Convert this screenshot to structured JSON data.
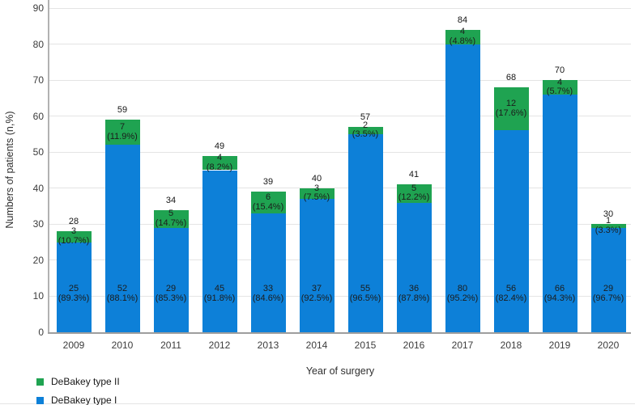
{
  "chart_data": {
    "type": "bar",
    "stacked": true,
    "title": "",
    "xlabel": "Year of surgery",
    "ylabel": "Numbers of patients (n,%)",
    "ylim": [
      0,
      90
    ],
    "ytick_step": 10,
    "yticks": [
      0,
      10,
      20,
      30,
      40,
      50,
      60,
      70,
      80,
      90
    ],
    "grid": true,
    "legend_position": "bottom-left",
    "categories": [
      "2009",
      "2010",
      "2011",
      "2012",
      "2013",
      "2014",
      "2015",
      "2016",
      "2017",
      "2018",
      "2019",
      "2020"
    ],
    "series": [
      {
        "name": "DeBakey type I",
        "color": "#0d80d8",
        "values": [
          25,
          52,
          29,
          45,
          33,
          37,
          55,
          36,
          80,
          56,
          66,
          29
        ],
        "pct_labels": [
          "(89.3%)",
          "(88.1%)",
          "(85.3%)",
          "(91.8%)",
          "(84.6%)",
          "(92.5%)",
          "(96.5%)",
          "(87.8%)",
          "(95.2%)",
          "(82.4%)",
          "(94.3%)",
          "(96.7%)"
        ]
      },
      {
        "name": "DeBakey type II",
        "color": "#1fa351",
        "values": [
          3,
          7,
          5,
          4,
          6,
          3,
          2,
          5,
          4,
          12,
          4,
          1
        ],
        "pct_labels": [
          "(10.7%)",
          "(11.9%)",
          "(14.7%)",
          "(8.2%)",
          "(15.4%)",
          "(7.5%)",
          "(3.5%)",
          "(12.2%)",
          "(4.8%)",
          "(17.6%)",
          "(5.7%)",
          "(3.3%)"
        ]
      }
    ],
    "totals": [
      28,
      59,
      34,
      49,
      39,
      40,
      57,
      41,
      84,
      68,
      70,
      30
    ],
    "legend": [
      {
        "label": "DeBakey type II",
        "color": "#1fa351"
      },
      {
        "label": "DeBakey type I",
        "color": "#0d80d8"
      }
    ],
    "colors": {
      "grid": "#e4e4e4",
      "axis": "#9e9e9e",
      "type_i_blue": "#0d80d8",
      "type_ii_green": "#1fa351"
    }
  }
}
